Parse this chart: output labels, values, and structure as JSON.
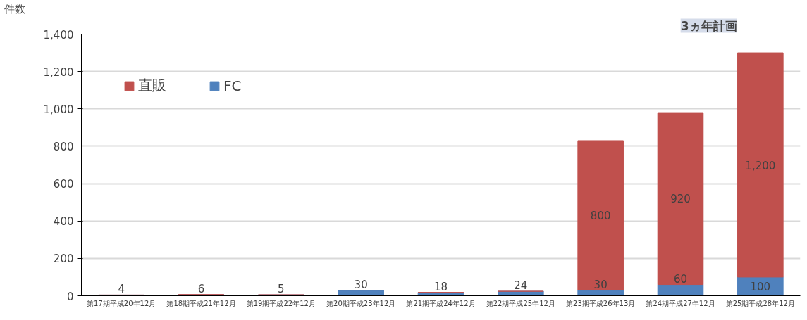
{
  "chart_data": {
    "type": "bar",
    "stacked": true,
    "ylabel": "件数",
    "categories": [
      "第17期平成20年12月",
      "第18期平成21年12月",
      "第19期平成22年12月",
      "第20期平成23年12月",
      "第21期平成24年12月",
      "第22期平成25年12月",
      "第23期平成26年13月",
      "第24期平成27年12月",
      "第25期平成28年12月"
    ],
    "series": [
      {
        "name": "FC",
        "color": "#4f81bd",
        "values": [
          4,
          6,
          5,
          30,
          18,
          24,
          30,
          60,
          100
        ],
        "value_labels": [
          "4",
          "6",
          "5",
          "30",
          "18",
          "24",
          "30",
          "60",
          "100"
        ]
      },
      {
        "name": "直販",
        "color": "#c0504d",
        "values": [
          0,
          0,
          0,
          0,
          0,
          0,
          800,
          920,
          1200
        ],
        "value_labels": [
          null,
          null,
          null,
          null,
          null,
          null,
          "800",
          "920",
          "1,200"
        ]
      }
    ],
    "ylim": [
      0,
      1400
    ],
    "yticks": [
      0,
      {
        "value": 200,
        "label": "200"
      },
      {
        "value": 400,
        "label": "400"
      },
      {
        "value": 600,
        "label": "600"
      },
      {
        "value": 800,
        "label": "800"
      },
      {
        "value": 1000,
        "label": "1,000"
      },
      {
        "value": 1200,
        "label": "1,200"
      },
      {
        "value": 1400,
        "label": "1,400"
      }
    ],
    "grid": "y",
    "legend": "top left",
    "annotations": [
      "3ヵ年計画"
    ]
  }
}
